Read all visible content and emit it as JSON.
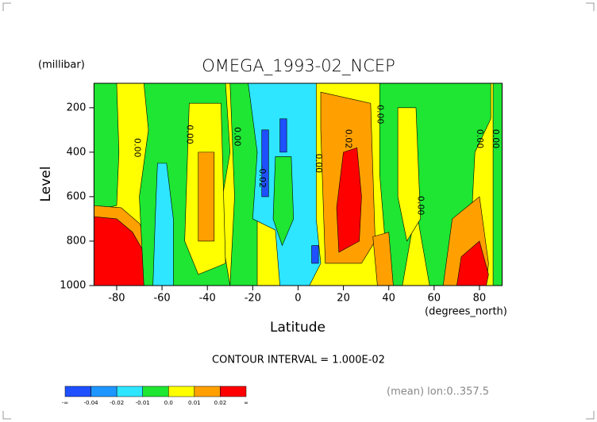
{
  "chart_data": {
    "type": "contour",
    "title": "OMEGA_1993-02_NCEP",
    "y_unit": "(millibar)",
    "ylabel": "Level",
    "xlabel": "Latitude",
    "x_unit": "(degrees_north)",
    "note": "CONTOUR INTERVAL = 1.000E-02",
    "footer": "(mean) lon:0..357.5",
    "xlim": [
      -90,
      90
    ],
    "ylim": [
      1000,
      90
    ],
    "xticks": [
      -80,
      -60,
      -40,
      -20,
      0,
      20,
      40,
      60,
      80
    ],
    "yticks": [
      200,
      400,
      600,
      800,
      1000
    ],
    "colors": [
      "#1e50ff",
      "#1e96ff",
      "#2ee6ff",
      "#1ee632",
      "#ffff00",
      "#ffa000",
      "#ff0000"
    ],
    "colorbar_labels": [
      "-∞",
      "-0.04",
      "-0.02",
      "-0.01",
      "0.0",
      "0.01",
      "0.02",
      "∞"
    ],
    "background_band": 4,
    "regions": [
      {
        "band": 3,
        "points": [
          [
            -90,
            90
          ],
          [
            -80,
            90
          ],
          [
            -79,
            400
          ],
          [
            -80,
            640
          ],
          [
            -90,
            660
          ]
        ]
      },
      {
        "band": 5,
        "points": [
          [
            -90,
            640
          ],
          [
            -78,
            650
          ],
          [
            -70,
            720
          ],
          [
            -64,
            850
          ],
          [
            -63,
            1000
          ],
          [
            -90,
            1000
          ]
        ]
      },
      {
        "band": 6,
        "points": [
          [
            -90,
            690
          ],
          [
            -80,
            700
          ],
          [
            -73,
            760
          ],
          [
            -68,
            850
          ],
          [
            -66,
            1000
          ],
          [
            -90,
            1000
          ]
        ]
      },
      {
        "band": 3,
        "points": [
          [
            -68,
            90
          ],
          [
            -32,
            90
          ],
          [
            -30,
            400
          ],
          [
            -35,
            700
          ],
          [
            -30,
            1000
          ],
          [
            -68,
            1000
          ],
          [
            -70,
            600
          ],
          [
            -66,
            300
          ]
        ]
      },
      {
        "band": 2,
        "points": [
          [
            -62,
            450
          ],
          [
            -58,
            450
          ],
          [
            -55,
            700
          ],
          [
            -55,
            1000
          ],
          [
            -64,
            1000
          ],
          [
            -63,
            700
          ]
        ]
      },
      {
        "band": 4,
        "points": [
          [
            -48,
            180
          ],
          [
            -34,
            180
          ],
          [
            -32,
            900
          ],
          [
            -44,
            950
          ],
          [
            -50,
            800
          ]
        ]
      },
      {
        "band": 5,
        "points": [
          [
            -44,
            400
          ],
          [
            -37,
            400
          ],
          [
            -37,
            800
          ],
          [
            -44,
            800
          ]
        ]
      },
      {
        "band": 3,
        "points": [
          [
            -30,
            90
          ],
          [
            -18,
            90
          ],
          [
            -18,
            1000
          ],
          [
            -30,
            1000
          ],
          [
            -28,
            600
          ]
        ]
      },
      {
        "band": 2,
        "points": [
          [
            -22,
            90
          ],
          [
            8,
            90
          ],
          [
            8,
            700
          ],
          [
            10,
            900
          ],
          [
            5,
            1000
          ],
          [
            -8,
            1000
          ],
          [
            -10,
            750
          ],
          [
            -20,
            700
          ],
          [
            -18,
            400
          ]
        ]
      },
      {
        "band": 3,
        "points": [
          [
            -10,
            420
          ],
          [
            -3,
            420
          ],
          [
            -2,
            700
          ],
          [
            -7,
            820
          ],
          [
            -11,
            700
          ]
        ]
      },
      {
        "band": 0,
        "points": [
          [
            -16,
            300
          ],
          [
            -13,
            300
          ],
          [
            -13,
            600
          ],
          [
            -16,
            600
          ]
        ]
      },
      {
        "band": 0,
        "points": [
          [
            -8,
            250
          ],
          [
            -5,
            250
          ],
          [
            -5,
            400
          ],
          [
            -8,
            400
          ]
        ]
      },
      {
        "band": 0,
        "points": [
          [
            6,
            820
          ],
          [
            9,
            820
          ],
          [
            9,
            900
          ],
          [
            6,
            900
          ]
        ]
      },
      {
        "band": 5,
        "points": [
          [
            10,
            130
          ],
          [
            32,
            180
          ],
          [
            34,
            800
          ],
          [
            28,
            900
          ],
          [
            12,
            900
          ],
          [
            11,
            600
          ],
          [
            10,
            300
          ]
        ]
      },
      {
        "band": 6,
        "points": [
          [
            20,
            400
          ],
          [
            26,
            380
          ],
          [
            28,
            600
          ],
          [
            27,
            800
          ],
          [
            18,
            850
          ],
          [
            17,
            650
          ]
        ]
      },
      {
        "band": 3,
        "points": [
          [
            36,
            90
          ],
          [
            85,
            90
          ],
          [
            85,
            250
          ],
          [
            78,
            400
          ],
          [
            76,
            800
          ],
          [
            68,
            1000
          ],
          [
            58,
            1000
          ],
          [
            52,
            650
          ],
          [
            46,
            1000
          ],
          [
            40,
            1000
          ],
          [
            36,
            500
          ]
        ]
      },
      {
        "band": 4,
        "points": [
          [
            44,
            200
          ],
          [
            52,
            200
          ],
          [
            54,
            700
          ],
          [
            48,
            800
          ],
          [
            44,
            600
          ]
        ]
      },
      {
        "band": 5,
        "points": [
          [
            33,
            780
          ],
          [
            40,
            760
          ],
          [
            42,
            1000
          ],
          [
            35,
            1000
          ]
        ]
      },
      {
        "band": 5,
        "points": [
          [
            68,
            700
          ],
          [
            80,
            600
          ],
          [
            84,
            900
          ],
          [
            83,
            1000
          ],
          [
            64,
            1000
          ]
        ]
      },
      {
        "band": 6,
        "points": [
          [
            72,
            870
          ],
          [
            80,
            800
          ],
          [
            84,
            950
          ],
          [
            83,
            1000
          ],
          [
            70,
            1000
          ]
        ]
      },
      {
        "band": 3,
        "points": [
          [
            86,
            90
          ],
          [
            90,
            90
          ],
          [
            90,
            1000
          ],
          [
            86,
            1000
          ]
        ]
      }
    ],
    "contour_labels": [
      {
        "text": "0.00",
        "lat": -71,
        "level": 380
      },
      {
        "text": "0.00",
        "lat": -48,
        "level": 320
      },
      {
        "text": "0.00",
        "lat": -27,
        "level": 330
      },
      {
        "text": "-0.02",
        "lat": -16,
        "level": 510
      },
      {
        "text": "0.00",
        "lat": 9,
        "level": 450
      },
      {
        "text": "0.02",
        "lat": 22,
        "level": 340
      },
      {
        "text": "0.00",
        "lat": 36,
        "level": 230
      },
      {
        "text": "0.00",
        "lat": 54,
        "level": 640
      },
      {
        "text": "0.00",
        "lat": 80,
        "level": 340
      },
      {
        "text": "0.00",
        "lat": 87,
        "level": 340
      }
    ]
  }
}
